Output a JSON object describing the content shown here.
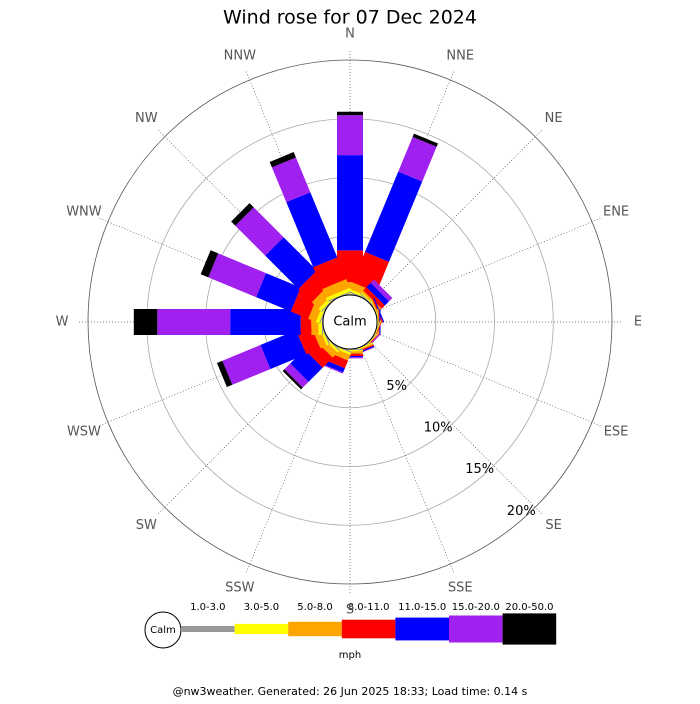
{
  "chart_data": {
    "type": "windrose",
    "title": "Wind rose for 07 Dec 2024",
    "categories": [
      "N",
      "NNE",
      "NE",
      "ENE",
      "E",
      "ESE",
      "SE",
      "SSE",
      "S",
      "SSW",
      "SW",
      "WSW",
      "W",
      "WNW",
      "NW",
      "NNW"
    ],
    "series": [
      {
        "name": "1.0-3.0",
        "color": "#999999",
        "values": [
          0.1,
          0.1,
          0.1,
          0.05,
          0.05,
          0.05,
          0.05,
          0.05,
          0.1,
          0.1,
          0.1,
          0.1,
          0.1,
          0.1,
          0.1,
          0.1
        ]
      },
      {
        "name": "3.0-5.0",
        "color": "#ffff00",
        "values": [
          0.2,
          0.2,
          0.1,
          0.05,
          0.05,
          0.05,
          0.05,
          0.1,
          0.1,
          0.2,
          0.2,
          0.2,
          0.3,
          0.3,
          0.3,
          0.3
        ]
      },
      {
        "name": "5.0-8.0",
        "color": "#ffa500",
        "values": [
          0.8,
          0.6,
          0.2,
          0.1,
          0.05,
          0.05,
          0.05,
          0.1,
          0.2,
          0.5,
          0.6,
          0.6,
          0.6,
          0.7,
          0.8,
          0.8
        ]
      },
      {
        "name": "8.0-11.0",
        "color": "#ff0000",
        "values": [
          2.7,
          2.8,
          0.4,
          0.1,
          0.05,
          0.05,
          0.05,
          0.1,
          0.2,
          0.7,
          1.2,
          1.3,
          0.9,
          1.6,
          1.6,
          2.0
        ]
      },
      {
        "name": "11.0-15.0",
        "color": "#0000ff",
        "values": [
          8.1,
          7.4,
          0.5,
          0.1,
          0.1,
          0,
          0,
          0.1,
          0.1,
          0.4,
          1.7,
          3.3,
          6.0,
          3.2,
          4.0,
          6.0
        ]
      },
      {
        "name": "15.0-20.0",
        "color": "#a020f0",
        "values": [
          3.4,
          3.2,
          0.4,
          0,
          0,
          0,
          0.1,
          0.05,
          0.1,
          0.1,
          0.7,
          3.5,
          6.2,
          4.4,
          3.6,
          3.2
        ]
      },
      {
        "name": "20.0-50.0",
        "color": "#000000",
        "values": [
          0.3,
          0.3,
          0,
          0,
          0,
          0,
          0,
          0,
          0,
          0,
          0.2,
          0.5,
          2.0,
          0.7,
          0.5,
          0.5
        ]
      }
    ],
    "rlim": [
      0,
      20
    ],
    "rticks": [
      {
        "value": 5,
        "label": "5%"
      },
      {
        "value": 10,
        "label": "10%"
      },
      {
        "value": 15,
        "label": "15%"
      },
      {
        "value": 20,
        "label": "20%"
      }
    ],
    "calm_label": "Calm",
    "unit_label": "mph",
    "footer": "@nw3weather. Generated: 26 Jun 2025 18:33; Load time: 0.14 s"
  }
}
